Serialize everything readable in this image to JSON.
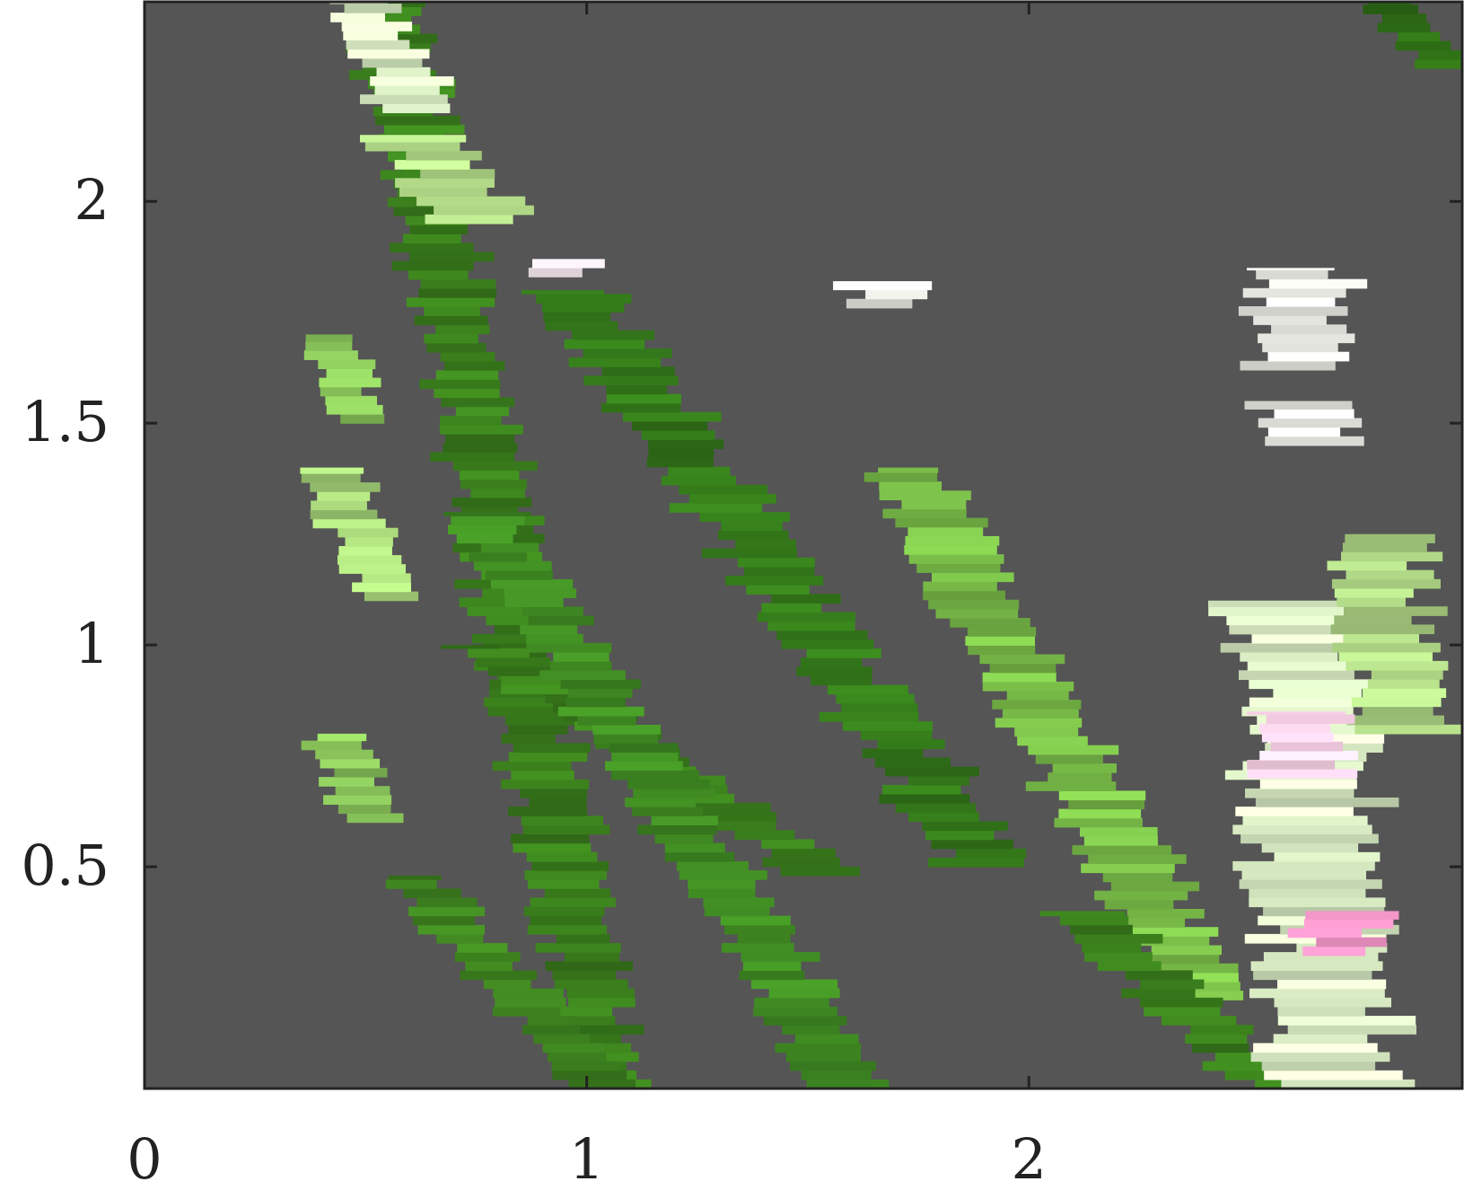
{
  "chart_data": {
    "type": "heatmap",
    "title": "",
    "xlabel": "",
    "ylabel": "",
    "xlim": [
      0,
      2.98
    ],
    "ylim": [
      0,
      2.45
    ],
    "xticks": [
      0,
      1,
      2
    ],
    "xtick_labels": [
      "0",
      "1",
      "2"
    ],
    "yticks": [
      0.5,
      1,
      1.5,
      2
    ],
    "ytick_labels": [
      "0.5",
      "1",
      "1.5",
      "2"
    ],
    "grid": false,
    "colorbar": false,
    "colors": {
      "background": "#555555",
      "axis": "#222222",
      "scale": [
        "#e88fbf",
        "#f8d0e6",
        "#f6f6f2",
        "#dcefc6",
        "#a8d77a",
        "#7cc04a",
        "#52a02a",
        "#3a7f1c",
        "#2a6513"
      ]
    },
    "bands": [
      {
        "name": "band-1",
        "y0": 0.0,
        "y1": 2.45,
        "x_at_y0": 1.05,
        "x_at_y1": 0.55,
        "width": 0.16,
        "color": "#3a7f1c"
      },
      {
        "name": "band-2",
        "y0": 0.0,
        "y1": 0.48,
        "x_at_y0": 1.03,
        "x_at_y1": 0.6,
        "width": 0.14,
        "color": "#3f8520"
      },
      {
        "name": "band-3",
        "y0": 0.48,
        "y1": 1.0,
        "x_at_y0": 1.53,
        "x_at_y1": 0.75,
        "width": 0.16,
        "color": "#3a7f1c"
      },
      {
        "name": "band-4",
        "y0": 0.0,
        "y1": 1.3,
        "x_at_y0": 1.6,
        "x_at_y1": 0.75,
        "width": 0.16,
        "color": "#3f8a22"
      },
      {
        "name": "band-5",
        "y0": 0.5,
        "y1": 1.8,
        "x_at_y0": 1.9,
        "x_at_y1": 0.95,
        "width": 0.18,
        "color": "#347a1a"
      },
      {
        "name": "band-6",
        "y0": 0.2,
        "y1": 1.4,
        "x_at_y0": 2.4,
        "x_at_y1": 1.7,
        "width": 0.18,
        "color": "#7cc04a"
      },
      {
        "name": "band-7",
        "y0": 0.0,
        "y1": 0.4,
        "x_at_y0": 2.55,
        "x_at_y1": 2.1,
        "width": 0.16,
        "color": "#3a7f1c"
      },
      {
        "name": "band-8",
        "y0": 1.5,
        "y1": 1.7,
        "x_at_y0": 0.48,
        "x_at_y1": 0.42,
        "width": 0.12,
        "color": "#8cc85c"
      },
      {
        "name": "band-9",
        "y0": 1.1,
        "y1": 1.4,
        "x_at_y0": 0.55,
        "x_at_y1": 0.42,
        "width": 0.14,
        "color": "#a8d77a"
      },
      {
        "name": "band-10",
        "y0": 0.6,
        "y1": 0.8,
        "x_at_y0": 0.52,
        "x_at_y1": 0.42,
        "width": 0.14,
        "color": "#8cc85c"
      },
      {
        "name": "band-11",
        "y0": 2.2,
        "y1": 2.45,
        "x_at_y0": 0.62,
        "x_at_y1": 0.48,
        "width": 0.16,
        "color": "#dcefc6"
      },
      {
        "name": "band-12",
        "y0": 1.95,
        "y1": 2.15,
        "x_at_y0": 0.75,
        "x_at_y1": 0.6,
        "width": 0.2,
        "color": "#b5de8a"
      },
      {
        "name": "band-13",
        "y0": 2.3,
        "y1": 2.45,
        "x_at_y0": 2.95,
        "x_at_y1": 2.8,
        "width": 0.12,
        "color": "#2f7016"
      },
      {
        "name": "band-14",
        "y0": 1.62,
        "y1": 1.85,
        "x_at_y0": 2.62,
        "x_at_y1": 2.62,
        "width": 0.2,
        "color": "#f4f4ee"
      },
      {
        "name": "band-15",
        "y0": 1.45,
        "y1": 1.55,
        "x_at_y0": 2.62,
        "x_at_y1": 2.62,
        "width": 0.2,
        "color": "#f4f4ee"
      },
      {
        "name": "band-16",
        "y0": 0.0,
        "y1": 1.1,
        "x_at_y0": 2.7,
        "x_at_y1": 2.6,
        "width": 0.26,
        "color": "#dcefc6"
      },
      {
        "name": "band-17",
        "y0": 0.8,
        "y1": 1.25,
        "x_at_y0": 2.85,
        "x_at_y1": 2.78,
        "width": 0.2,
        "color": "#b5de8a"
      },
      {
        "name": "band-18",
        "y0": 0.7,
        "y1": 0.85,
        "x_at_y0": 2.62,
        "x_at_y1": 2.62,
        "width": 0.2,
        "color": "#f8d0e6"
      },
      {
        "name": "band-19",
        "y0": 0.3,
        "y1": 0.4,
        "x_at_y0": 2.7,
        "x_at_y1": 2.7,
        "width": 0.18,
        "color": "#e88fbf"
      },
      {
        "name": "band-20",
        "y0": 1.76,
        "y1": 1.82,
        "x_at_y0": 1.68,
        "x_at_y1": 1.68,
        "width": 0.18,
        "color": "#f4f4ee"
      },
      {
        "name": "band-21",
        "y0": 1.83,
        "y1": 1.87,
        "x_at_y0": 0.95,
        "x_at_y1": 0.95,
        "width": 0.14,
        "color": "#f7eaf0"
      }
    ]
  }
}
